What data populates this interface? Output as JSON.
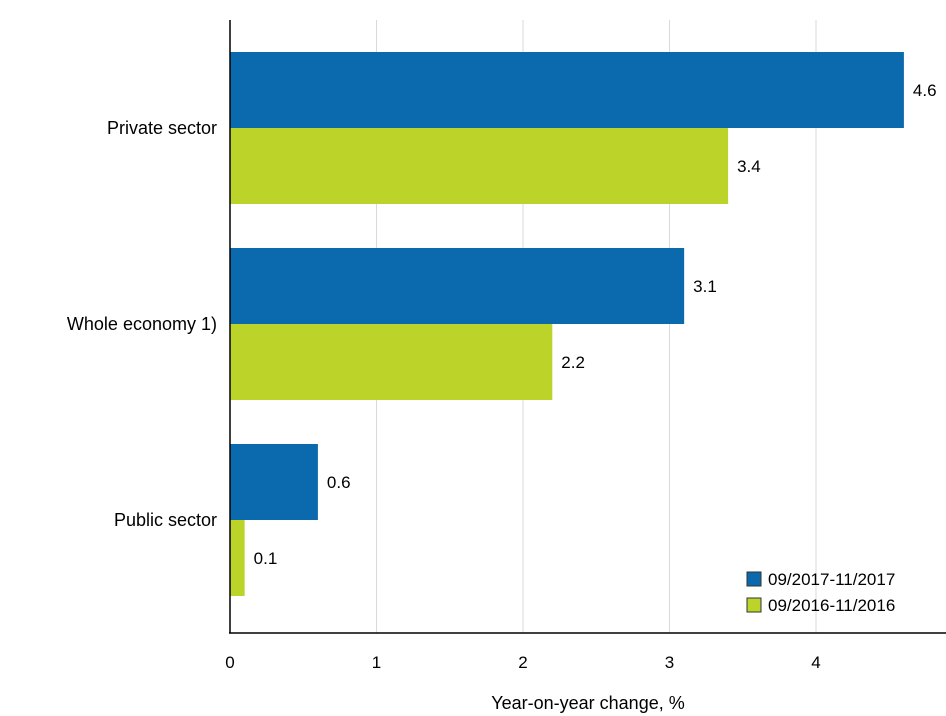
{
  "chart_data": {
    "type": "bar",
    "orientation": "horizontal",
    "categories": [
      "Private sector",
      "Whole economy 1)",
      "Public sector"
    ],
    "series": [
      {
        "name": "09/2017-11/2017",
        "color": "#0a6aad",
        "values": [
          4.6,
          3.1,
          0.6
        ]
      },
      {
        "name": "09/2016-11/2016",
        "color": "#bcd42a",
        "values": [
          3.4,
          2.2,
          0.1
        ]
      }
    ],
    "data_labels": [
      [
        "4.6",
        "3.4"
      ],
      [
        "3.1",
        "2.2"
      ],
      [
        "0.6",
        "0.1"
      ]
    ],
    "xlabel": "Year-on-year change, %",
    "ylabel": "",
    "xlim": [
      0,
      4.8
    ],
    "xticks": [
      "0",
      "1",
      "2",
      "3",
      "4"
    ],
    "grid": "vertical",
    "legend_position": "bottom-right"
  }
}
